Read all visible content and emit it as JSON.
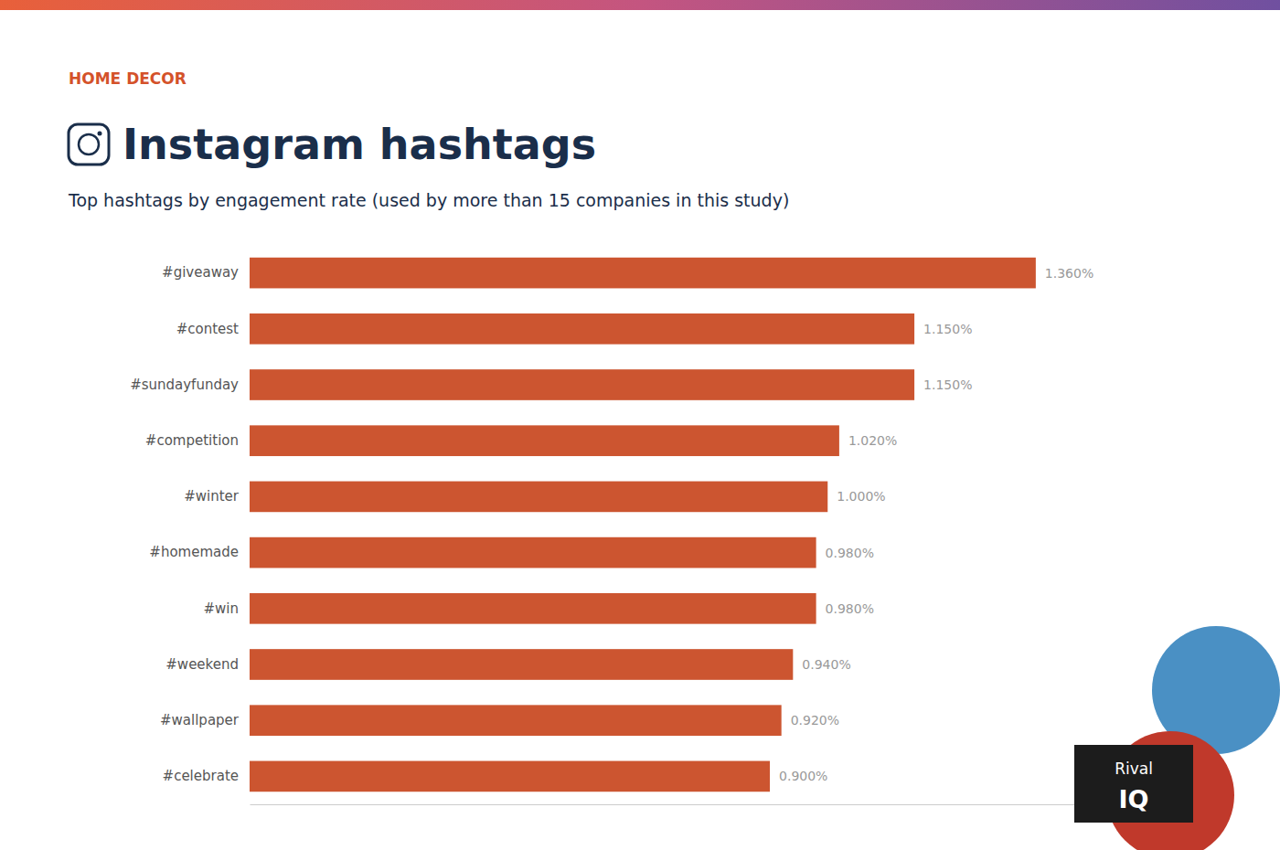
{
  "chart_data": {
    "type": "bar",
    "orientation": "horizontal",
    "title": "Instagram hashtags",
    "subtitle": "Top hashtags by engagement rate (used by more than 15 companies in this study)",
    "annotations": [
      "HOME DECOR",
      "Rival",
      "IQ"
    ],
    "categories": [
      "#giveaway",
      "#contest",
      "#sundayfunday",
      "#competition",
      "#winter",
      "#homemade",
      "#win",
      "#weekend",
      "#wallpaper",
      "#celebrate"
    ],
    "values": [
      1.36,
      1.15,
      1.15,
      1.02,
      1.0,
      0.98,
      0.98,
      0.94,
      0.92,
      0.9
    ],
    "value_labels": [
      "1.360%",
      "1.150%",
      "1.150%",
      "1.020%",
      "1.000%",
      "0.980%",
      "0.980%",
      "0.940%",
      "0.920%",
      "0.900%"
    ],
    "data_labels": true,
    "color": "#cc5530",
    "xlim": [
      0,
      1.55
    ],
    "xticks": [],
    "grid": false,
    "tick_labels": "y"
  }
}
